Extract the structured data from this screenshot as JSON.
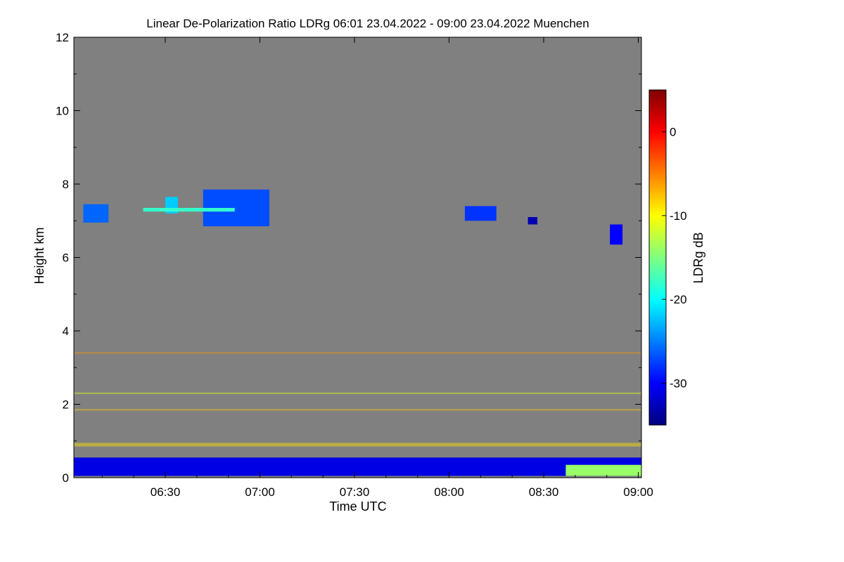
{
  "chart_data": {
    "type": "heatmap",
    "title": "Linear De-Polarization Ratio LDRg   06:01 23.04.2022 - 09:00 23.04.2022 Muenchen",
    "xlabel": "Time UTC",
    "ylabel": "Height km",
    "xlim_minutes": [
      361,
      541
    ],
    "ylim_km": [
      0,
      12
    ],
    "x_ticks": [
      {
        "minutes": 390,
        "label": "06:30"
      },
      {
        "minutes": 420,
        "label": "07:00"
      },
      {
        "minutes": 450,
        "label": "07:30"
      },
      {
        "minutes": 480,
        "label": "08:00"
      },
      {
        "minutes": 510,
        "label": "08:30"
      },
      {
        "minutes": 540,
        "label": "09:00"
      }
    ],
    "y_ticks": [
      {
        "value": 0,
        "label": "0"
      },
      {
        "value": 2,
        "label": "2"
      },
      {
        "value": 4,
        "label": "4"
      },
      {
        "value": 6,
        "label": "6"
      },
      {
        "value": 8,
        "label": "8"
      },
      {
        "value": 10,
        "label": "10"
      },
      {
        "value": 12,
        "label": "12"
      }
    ],
    "background_color": "#808080",
    "colorbar": {
      "label": "LDRg dB",
      "range_db": [
        -35,
        5
      ],
      "ticks": [
        {
          "value": 0,
          "label": "0"
        },
        {
          "value": -10,
          "label": "-10"
        },
        {
          "value": -20,
          "label": "-20"
        },
        {
          "value": -30,
          "label": "-30"
        }
      ],
      "colormap": [
        "#00007f",
        "#0000ff",
        "#007fff",
        "#00ffff",
        "#7fff7f",
        "#ffff00",
        "#ff7f00",
        "#ff0000",
        "#7f0000"
      ]
    },
    "features": [
      {
        "name": "boundary-layer",
        "t_start": 361,
        "t_end": 541,
        "h_bottom": 0.05,
        "h_top": 0.55,
        "ldr_db": -31
      },
      {
        "name": "boundary-layer-mixed-end",
        "t_start": 517,
        "t_end": 541,
        "h_bottom": 0.05,
        "h_top": 0.35,
        "ldr_db": -14
      },
      {
        "name": "cirrus-layer-1",
        "t_start": 364,
        "t_end": 372,
        "h_bottom": 6.95,
        "h_top": 7.45,
        "ldr_db": -26
      },
      {
        "name": "cirrus-layer-2",
        "t_start": 390,
        "t_end": 394,
        "h_bottom": 7.2,
        "h_top": 7.65,
        "ldr_db": -22
      },
      {
        "name": "cirrus-fallstreak",
        "t_start": 402,
        "t_end": 423,
        "h_bottom": 6.85,
        "h_top": 7.85,
        "ldr_db": -27
      },
      {
        "name": "cirrus-thin-line",
        "t_start": 383,
        "t_end": 412,
        "h_bottom": 7.25,
        "h_top": 7.35,
        "ldr_db": -18
      },
      {
        "name": "cirrus-layer-3",
        "t_start": 485,
        "t_end": 495,
        "h_bottom": 7.0,
        "h_top": 7.4,
        "ldr_db": -28
      },
      {
        "name": "cirrus-layer-4",
        "t_start": 505,
        "t_end": 508,
        "h_bottom": 6.9,
        "h_top": 7.1,
        "ldr_db": -33
      },
      {
        "name": "cirrus-layer-5",
        "t_start": 531,
        "t_end": 535,
        "h_bottom": 6.35,
        "h_top": 6.9,
        "ldr_db": -30
      },
      {
        "name": "aerosol-streak-2.3km",
        "t_start": 361,
        "t_end": 541,
        "h_bottom": 2.28,
        "h_top": 2.32,
        "ldr_db": -11
      },
      {
        "name": "aerosol-streak-1.85km",
        "t_start": 361,
        "t_end": 541,
        "h_bottom": 1.83,
        "h_top": 1.87,
        "ldr_db": -8
      },
      {
        "name": "aerosol-streak-3.4km",
        "t_start": 361,
        "t_end": 541,
        "h_bottom": 3.38,
        "h_top": 3.42,
        "ldr_db": -6
      },
      {
        "name": "aerosol-streak-0.9km",
        "t_start": 361,
        "t_end": 541,
        "h_bottom": 0.85,
        "h_top": 0.95,
        "ldr_db": -9
      }
    ]
  }
}
